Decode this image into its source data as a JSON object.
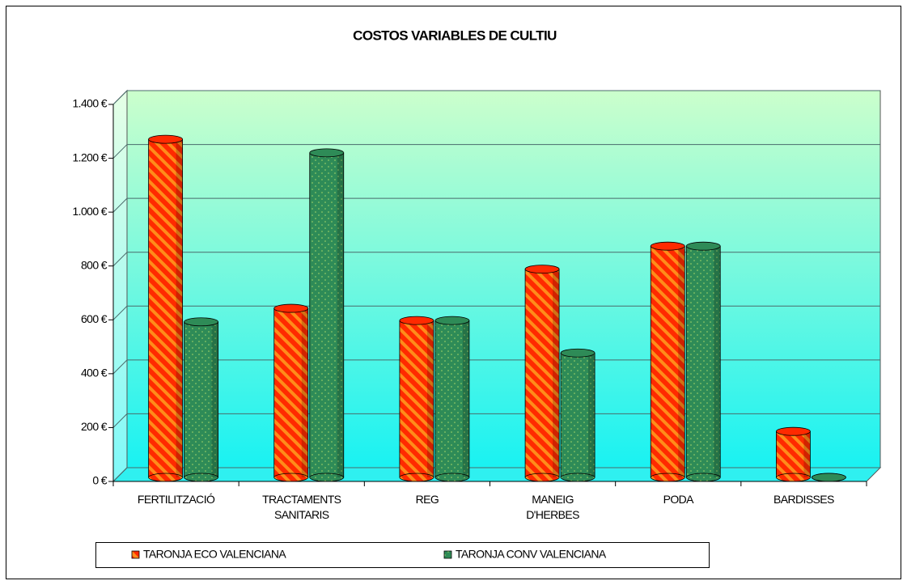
{
  "chart_data": {
    "type": "bar3d",
    "title": "COSTOS VARIABLES DE CULTIU",
    "categories": [
      "FERTILITZACIÓ",
      "TRACTAMENTS SANITARIS",
      "REG",
      "MANEIG D'HERBES",
      "PODA",
      "BARDISSES"
    ],
    "series": [
      {
        "name": "TARONJA ECO VALENCIANA",
        "color": "#ff2a00",
        "values": [
          1250,
          625,
          580,
          770,
          855,
          170
        ]
      },
      {
        "name": "TARONJA CONV VALENCIANA",
        "color": "#2e8b57",
        "values": [
          575,
          1200,
          580,
          460,
          855,
          0
        ]
      }
    ],
    "ylim": [
      0,
      1400
    ],
    "yticks": [
      {
        "value": 0,
        "label": "0 €"
      },
      {
        "value": 200,
        "label": "200 €"
      },
      {
        "value": 400,
        "label": "400 €"
      },
      {
        "value": 600,
        "label": "600 €"
      },
      {
        "value": 800,
        "label": "800 €"
      },
      {
        "value": 1000,
        "label": "1.000 €"
      },
      {
        "value": 1200,
        "label": "1.200 €"
      },
      {
        "value": 1400,
        "label": "1.400 €"
      }
    ],
    "grid": true,
    "legend": "bottom"
  }
}
